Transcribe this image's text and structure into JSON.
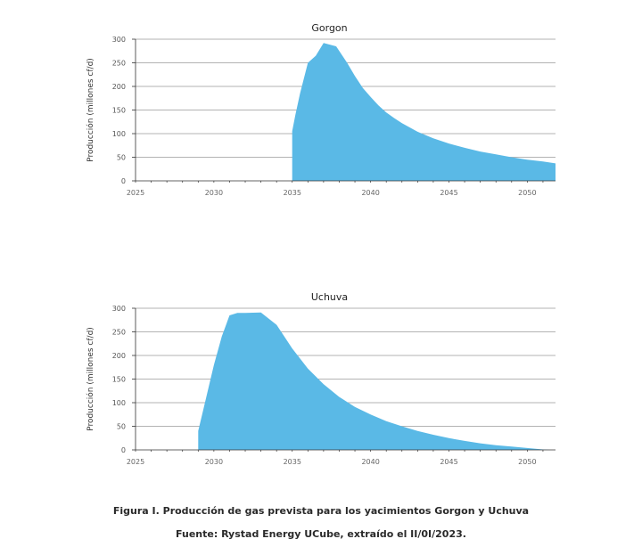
{
  "chart_data": [
    {
      "type": "area",
      "title": "Gorgon",
      "xlabel": "",
      "ylabel": "Producción (millones cf/d)",
      "xlim": [
        2025,
        2051.8
      ],
      "ylim": [
        0,
        300
      ],
      "x_ticks": [
        "2025",
        "2030",
        "2035",
        "2040",
        "2045",
        "2050"
      ],
      "y_ticks": [
        "0",
        "50",
        "100",
        "150",
        "200",
        "250",
        "300"
      ],
      "grid": true,
      "color": "#5ab9e6",
      "x": [
        2035,
        2035,
        2035.2,
        2035.5,
        2036,
        2036.5,
        2037,
        2037.8,
        2038.5,
        2039,
        2039.5,
        2040,
        2040.5,
        2041,
        2041.5,
        2042,
        2043,
        2044,
        2045,
        2046,
        2047,
        2048,
        2049,
        2050,
        2051,
        2051.8
      ],
      "y": [
        0,
        105,
        140,
        185,
        250,
        265,
        292,
        285,
        250,
        222,
        197,
        178,
        160,
        145,
        133,
        122,
        104,
        90,
        79,
        70,
        62,
        56,
        50,
        45,
        41,
        37
      ]
    },
    {
      "type": "area",
      "title": "Uchuva",
      "xlabel": "",
      "ylabel": "Producción (millones cf/d)",
      "xlim": [
        2025,
        2051.8
      ],
      "ylim": [
        0,
        300
      ],
      "x_ticks": [
        "2025",
        "2030",
        "2035",
        "2040",
        "2045",
        "2050"
      ],
      "y_ticks": [
        "0",
        "50",
        "100",
        "150",
        "200",
        "250",
        "300"
      ],
      "grid": true,
      "color": "#5ab9e6",
      "x": [
        2029,
        2029,
        2029.5,
        2030,
        2030.5,
        2031,
        2031.5,
        2032,
        2033,
        2034,
        2035,
        2036,
        2037,
        2038,
        2039,
        2040,
        2041,
        2042,
        2043,
        2044,
        2045,
        2046,
        2047,
        2048,
        2049,
        2050,
        2051,
        2051.5
      ],
      "y": [
        0,
        40,
        110,
        180,
        240,
        285,
        290,
        290,
        291,
        265,
        215,
        172,
        139,
        112,
        91,
        75,
        61,
        50,
        40,
        32,
        25,
        19,
        14,
        10,
        7,
        4,
        1,
        0
      ]
    }
  ],
  "caption": {
    "line1": "Figura I. Producción de gas prevista para los yacimientos Gorgon y Uchuva",
    "line2": "Fuente: Rystad Energy UCube, extraído el II/0I/2023."
  }
}
